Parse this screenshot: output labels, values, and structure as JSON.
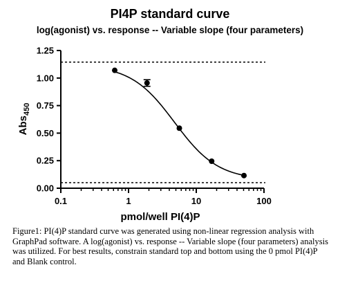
{
  "chart_data": {
    "type": "scatter",
    "title": "PI4P standard curve",
    "subtitle": "log(agonist) vs. response -- Variable slope (four parameters)",
    "xlabel": "pmol/well PI(4)P",
    "ylabel_main": "Abs",
    "ylabel_sub": "450",
    "x_scale": "log",
    "xlim": [
      0.1,
      100
    ],
    "ylim": [
      0.0,
      1.25
    ],
    "x_ticks": [
      0.1,
      1,
      10,
      100
    ],
    "x_tick_labels": [
      "0.1",
      "1",
      "10",
      "100"
    ],
    "y_ticks": [
      0.0,
      0.25,
      0.5,
      0.75,
      1.0,
      1.25
    ],
    "y_tick_labels": [
      "0.00",
      "0.25",
      "0.50",
      "0.75",
      "1.00",
      "1.25"
    ],
    "grid": false,
    "points": [
      {
        "x": 0.625,
        "y": 1.07,
        "err": 0
      },
      {
        "x": 1.875,
        "y": 0.955,
        "err": 0.03
      },
      {
        "x": 5.625,
        "y": 0.545,
        "err": 0
      },
      {
        "x": 16.875,
        "y": 0.245,
        "err": 0
      },
      {
        "x": 50.625,
        "y": 0.115,
        "err": 0
      }
    ],
    "fit": {
      "model": "four-parameter logistic",
      "top": 1.12,
      "bottom": 0.075,
      "logEC50": 0.68,
      "hill": 1.35,
      "x_range": [
        0.625,
        50.625
      ]
    },
    "reference_lines": [
      1.145,
      0.05
    ],
    "colors": {
      "markers": "#000000",
      "curve": "#000000",
      "axes": "#000000"
    }
  },
  "caption": "Figure1: PI(4)P standard curve was generated using non-linear regression analysis with GraphPad software. A log(agonist) vs. response -- Variable slope (four parameters) analysis was utilized. For best results, constrain standard top and bottom using the 0 pmol PI(4)P and  Blank control."
}
